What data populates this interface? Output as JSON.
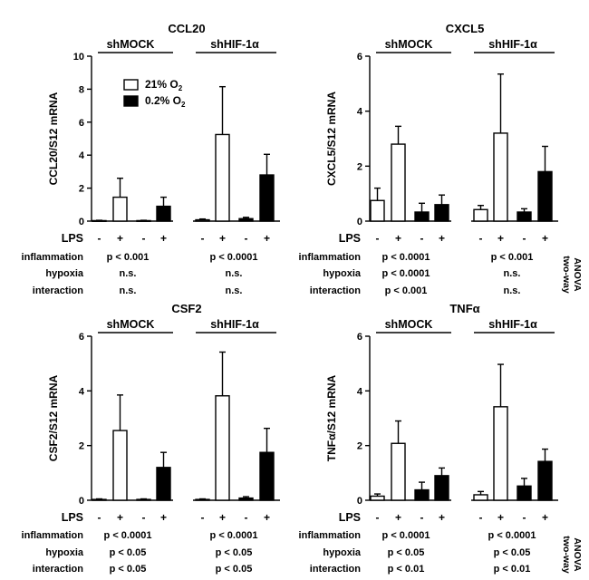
{
  "row_labels": [
    "LPS",
    "inflammation",
    "hypoxia",
    "interaction"
  ],
  "lps_signs": [
    "-",
    "+",
    "-",
    "+",
    "-",
    "+",
    "-",
    "+"
  ],
  "legend": [
    {
      "label": "21% O",
      "sub": "2",
      "color": "#ffffff"
    },
    {
      "label": "0.2% O",
      "sub": "2",
      "color": "#000000"
    }
  ],
  "anova_label": [
    "two-way",
    "ANOVA"
  ],
  "chart_data": [
    {
      "type": "bar",
      "title": "CCL20",
      "ylabel": "CCL20/S12 mRNA",
      "ylim": [
        0,
        10
      ],
      "yticks": [
        0,
        2,
        4,
        6,
        8,
        10
      ],
      "groups": [
        "shMOCK",
        "shHIF-1α"
      ],
      "categories": [
        "shMOCK 21% O2 -",
        "shMOCK 21% O2 +",
        "shMOCK 0.2% O2 -",
        "shMOCK 0.2% O2 +",
        "shHIF-1α 21% O2 -",
        "shHIF-1α 21% O2 +",
        "shHIF-1α 0.2% O2 -",
        "shHIF-1α 0.2% O2 +"
      ],
      "values": [
        0.03,
        1.45,
        0.03,
        0.9,
        0.08,
        5.25,
        0.15,
        2.8
      ],
      "errors": [
        0.02,
        1.15,
        0.02,
        0.55,
        0.05,
        2.9,
        0.08,
        1.25
      ],
      "stats": {
        "inflammation": [
          "p < 0.001",
          "p < 0.0001"
        ],
        "hypoxia": [
          "n.s.",
          "n.s."
        ],
        "interaction": [
          "n.s.",
          "n.s."
        ]
      }
    },
    {
      "type": "bar",
      "title": "CXCL5",
      "ylabel": "CXCL5/S12 mRNA",
      "ylim": [
        0,
        6
      ],
      "yticks": [
        0,
        2,
        4,
        6
      ],
      "groups": [
        "shMOCK",
        "shHIF-1α"
      ],
      "categories": [
        "shMOCK 21% O2 -",
        "shMOCK 21% O2 +",
        "shMOCK 0.2% O2 -",
        "shMOCK 0.2% O2 +",
        "shHIF-1α 21% O2 -",
        "shHIF-1α 21% O2 +",
        "shHIF-1α 0.2% O2 -",
        "shHIF-1α 0.2% O2 +"
      ],
      "values": [
        0.75,
        2.8,
        0.33,
        0.6,
        0.42,
        3.2,
        0.33,
        1.8
      ],
      "errors": [
        0.45,
        0.65,
        0.32,
        0.35,
        0.15,
        2.15,
        0.12,
        0.92
      ],
      "stats": {
        "inflammation": [
          "p < 0.0001",
          "p < 0.001"
        ],
        "hypoxia": [
          "p < 0.0001",
          "n.s."
        ],
        "interaction": [
          "p < 0.001",
          "n.s."
        ]
      }
    },
    {
      "type": "bar",
      "title": "CSF2",
      "ylabel": "CSF2/S12 mRNA",
      "ylim": [
        0,
        6
      ],
      "yticks": [
        0,
        2,
        4,
        6
      ],
      "groups": [
        "shMOCK",
        "shHIF-1α"
      ],
      "categories": [
        "shMOCK 21% O2 -",
        "shMOCK 21% O2 +",
        "shMOCK 0.2% O2 -",
        "shMOCK 0.2% O2 +",
        "shHIF-1α 21% O2 -",
        "shHIF-1α 21% O2 +",
        "shHIF-1α 0.2% O2 -",
        "shHIF-1α 0.2% O2 +"
      ],
      "values": [
        0.03,
        2.55,
        0.03,
        1.2,
        0.03,
        3.82,
        0.08,
        1.75
      ],
      "errors": [
        0.02,
        1.3,
        0.02,
        0.55,
        0.02,
        1.6,
        0.05,
        0.88
      ],
      "stats": {
        "inflammation": [
          "p < 0.0001",
          "p < 0.0001"
        ],
        "hypoxia": [
          "p < 0.05",
          "p < 0.05"
        ],
        "interaction": [
          "p < 0.05",
          "p < 0.05"
        ]
      }
    },
    {
      "type": "bar",
      "title": "TNFα",
      "ylabel": "TNFα/S12 mRNA",
      "ylim": [
        0,
        6
      ],
      "yticks": [
        0,
        2,
        4,
        6
      ],
      "groups": [
        "shMOCK",
        "shHIF-1α"
      ],
      "categories": [
        "shMOCK 21% O2 -",
        "shMOCK 21% O2 +",
        "shMOCK 0.2% O2 -",
        "shMOCK 0.2% O2 +",
        "shHIF-1α 21% O2 -",
        "shHIF-1α 21% O2 +",
        "shHIF-1α 0.2% O2 -",
        "shHIF-1α 0.2% O2 +"
      ],
      "values": [
        0.15,
        2.08,
        0.38,
        0.9,
        0.2,
        3.42,
        0.52,
        1.42
      ],
      "errors": [
        0.08,
        0.82,
        0.28,
        0.28,
        0.12,
        1.55,
        0.28,
        0.45
      ],
      "stats": {
        "inflammation": [
          "p < 0.0001",
          "p < 0.0001"
        ],
        "hypoxia": [
          "p < 0.05",
          "p < 0.05"
        ],
        "interaction": [
          "p < 0.01",
          "p < 0.01"
        ]
      }
    }
  ]
}
